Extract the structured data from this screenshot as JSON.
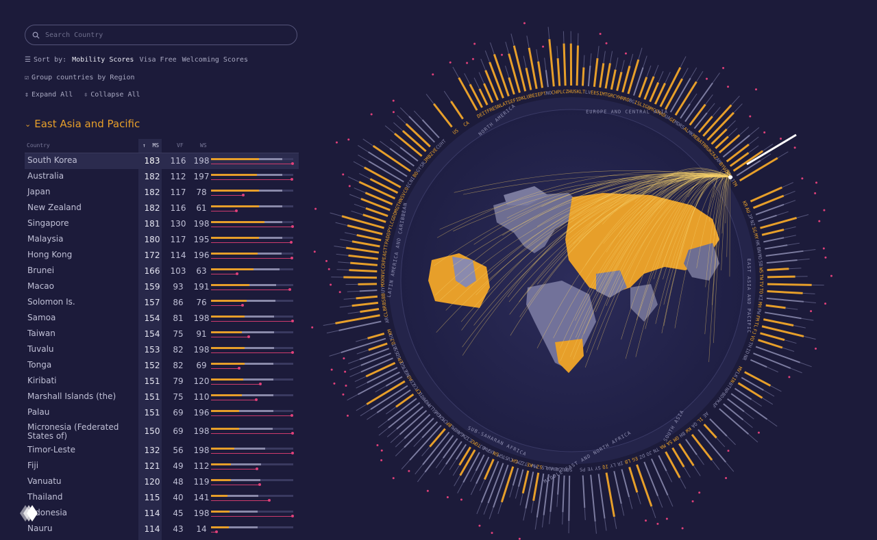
{
  "search": {
    "placeholder": "Search Country"
  },
  "sort": {
    "label": "Sort by:",
    "options": [
      "Mobility Scores",
      "Visa Free",
      "Welcoming Scores"
    ],
    "active": "Mobility Scores"
  },
  "group_label": "Group countries by Region",
  "expand_label": "Expand All",
  "collapse_label": "Collapse All",
  "region_title": "East Asia and Pacific",
  "table": {
    "headers": {
      "country": "Country",
      "ms": "MS",
      "vf": "VF",
      "ws": "WS"
    },
    "rows": [
      {
        "name": "South Korea",
        "ms": 183,
        "vf": 116,
        "ws": 198
      },
      {
        "name": "Australia",
        "ms": 182,
        "vf": 112,
        "ws": 197
      },
      {
        "name": "Japan",
        "ms": 182,
        "vf": 117,
        "ws": 78
      },
      {
        "name": "New Zealand",
        "ms": 182,
        "vf": 116,
        "ws": 61
      },
      {
        "name": "Singapore",
        "ms": 181,
        "vf": 130,
        "ws": 198
      },
      {
        "name": "Malaysia",
        "ms": 180,
        "vf": 117,
        "ws": 195
      },
      {
        "name": "Hong Kong",
        "ms": 172,
        "vf": 114,
        "ws": 196
      },
      {
        "name": "Brunei",
        "ms": 166,
        "vf": 103,
        "ws": 63
      },
      {
        "name": "Macao",
        "ms": 159,
        "vf": 93,
        "ws": 191
      },
      {
        "name": "Solomon Is.",
        "ms": 157,
        "vf": 86,
        "ws": 76
      },
      {
        "name": "Samoa",
        "ms": 154,
        "vf": 81,
        "ws": 198
      },
      {
        "name": "Taiwan",
        "ms": 154,
        "vf": 75,
        "ws": 91
      },
      {
        "name": "Tuvalu",
        "ms": 153,
        "vf": 82,
        "ws": 198
      },
      {
        "name": "Tonga",
        "ms": 152,
        "vf": 82,
        "ws": 69
      },
      {
        "name": "Kiribati",
        "ms": 151,
        "vf": 79,
        "ws": 120
      },
      {
        "name": "Marshall Islands (the)",
        "ms": 151,
        "vf": 75,
        "ws": 110
      },
      {
        "name": "Palau",
        "ms": 151,
        "vf": 69,
        "ws": 196
      },
      {
        "name": "Micronesia (Federated States of)",
        "ms": 150,
        "vf": 69,
        "ws": 198
      },
      {
        "name": "Timor-Leste",
        "ms": 132,
        "vf": 56,
        "ws": 198
      },
      {
        "name": "Fiji",
        "ms": 121,
        "vf": 49,
        "ws": 112
      },
      {
        "name": "Vanuatu",
        "ms": 120,
        "vf": 48,
        "ws": 119
      },
      {
        "name": "Thailand",
        "ms": 115,
        "vf": 40,
        "ws": 141
      },
      {
        "name": "Indonesia",
        "ms": 114,
        "vf": 45,
        "ws": 198
      },
      {
        "name": "Nauru",
        "ms": 114,
        "vf": 43,
        "ws": 14
      }
    ]
  },
  "radial": {
    "region_labels": [
      "EUROPE AND CENTRAL ASIA",
      "EAST ASIA AND PACIFIC",
      "SOUTH ASIA",
      "MIDDLE EAST AND NORTH AFRICA",
      "SUB-SAHARAN AFRICA",
      "LATIN AMERICA AND CARIBBEAN",
      "NORTH AMERICA"
    ],
    "codes_eap": [
      "KR",
      "AU",
      "JP",
      "NZ",
      "SG",
      "MY",
      "HK",
      "BN",
      "MO",
      "SB",
      "WS",
      "TW",
      "TV",
      "TO",
      "KI",
      "MH",
      "PW",
      "FM",
      "TL",
      "FJ",
      "VU",
      "TH",
      "ID",
      "NR"
    ],
    "codes_sa": [
      "MV",
      "LK",
      "IN",
      "BT",
      "NP",
      "BD",
      "PK",
      "AF"
    ],
    "codes_lac": [
      "AR",
      "CL",
      "BR",
      "BS",
      "BB",
      "UY",
      "MX",
      "KN",
      "VC",
      "CR",
      "PE",
      "AG",
      "TT",
      "PA",
      "DO",
      "PY",
      "LC",
      "GD",
      "DM",
      "GT",
      "HN",
      "SV",
      "CO",
      "EC",
      "NI",
      "BO",
      "GY",
      "SR",
      "JM",
      "BZ",
      "VE",
      "CU",
      "HT"
    ],
    "codes_na": [
      "US",
      "CA"
    ],
    "codes_eca": [
      "DE",
      "IT",
      "FR",
      "ES",
      "NL",
      "AT",
      "SE",
      "FI",
      "DK",
      "LU",
      "BE",
      "IE",
      "PT",
      "NO",
      "CH",
      "PL",
      "CZ",
      "HU",
      "SK",
      "LT",
      "LV",
      "EE",
      "SI",
      "MT",
      "GR",
      "CY",
      "HR",
      "RO",
      "BG",
      "IS",
      "LI",
      "GB",
      "MC",
      "SM",
      "AD",
      "UA",
      "GE",
      "MD",
      "RS",
      "AL",
      "MK",
      "ME",
      "BA",
      "TR",
      "RU",
      "KZ",
      "AZ",
      "AM",
      "BY",
      "UZ",
      "KG",
      "TJ",
      "TM"
    ],
    "codes_mena": [
      "AE",
      "IL",
      "QA",
      "KW",
      "BH",
      "OM",
      "SA",
      "MA",
      "TN",
      "JO",
      "DZ",
      "EG",
      "LB",
      "IR",
      "LY",
      "IQ",
      "SY",
      "YE",
      "PS"
    ],
    "codes_ssa": [
      "SC",
      "MU",
      "ZA",
      "BW",
      "NA",
      "LS",
      "SZ",
      "MW",
      "KE",
      "TZ",
      "ZM",
      "GH",
      "CV",
      "ST",
      "GM",
      "SN",
      "UG",
      "RW",
      "BJ",
      "TG",
      "MZ",
      "CI",
      "ZW",
      "GA",
      "NE",
      "ML",
      "BF",
      "CM",
      "GN",
      "GW",
      "SL",
      "LR",
      "MG",
      "MR",
      "TD",
      "CF",
      "CG",
      "CD",
      "AO",
      "NG",
      "ET",
      "GQ",
      "ER",
      "SD",
      "SS",
      "BI",
      "DJ",
      "SO",
      "KM"
    ]
  },
  "colors": {
    "accent": "#e79f2a",
    "pink": "#e0407a",
    "grey": "#8a8aaa",
    "bg": "#1c1b3a"
  }
}
